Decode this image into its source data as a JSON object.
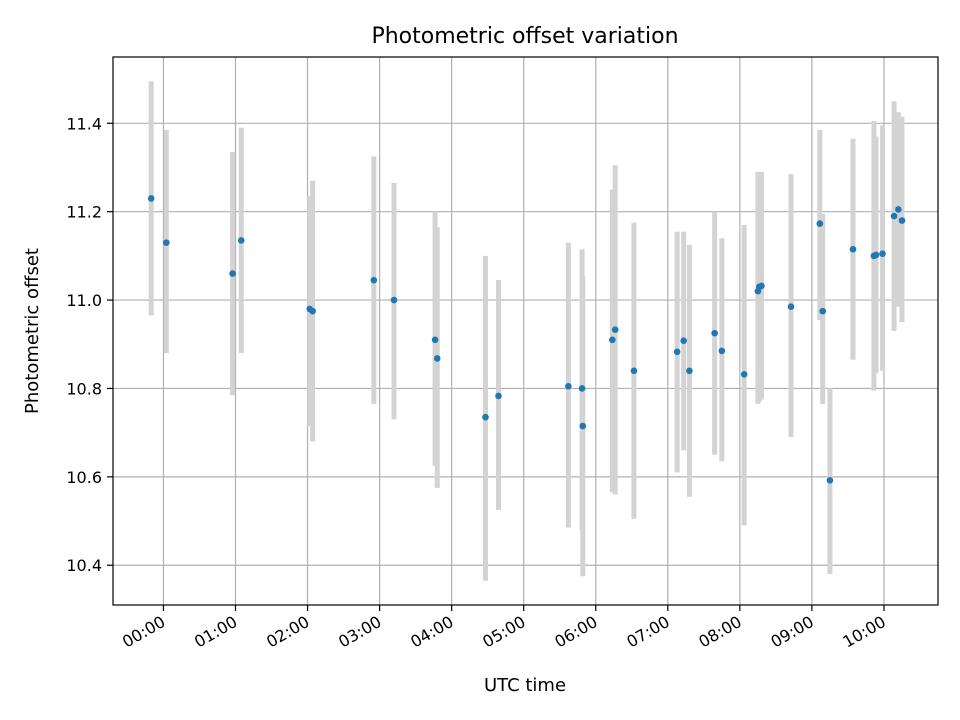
{
  "chart_data": {
    "type": "scatter",
    "title": "Photometric offset variation",
    "xlabel": "UTC time",
    "ylabel": "Photometric offset",
    "x_unit": "hours UTC",
    "xlim": [
      -0.7,
      10.75
    ],
    "ylim": [
      10.31,
      11.55
    ],
    "xticks": [
      {
        "value": 0,
        "label": "00:00"
      },
      {
        "value": 1,
        "label": "01:00"
      },
      {
        "value": 2,
        "label": "02:00"
      },
      {
        "value": 3,
        "label": "03:00"
      },
      {
        "value": 4,
        "label": "04:00"
      },
      {
        "value": 5,
        "label": "05:00"
      },
      {
        "value": 6,
        "label": "06:00"
      },
      {
        "value": 7,
        "label": "07:00"
      },
      {
        "value": 8,
        "label": "08:00"
      },
      {
        "value": 9,
        "label": "09:00"
      },
      {
        "value": 10,
        "label": "10:00"
      }
    ],
    "yticks": [
      {
        "value": 10.4,
        "label": "10.4"
      },
      {
        "value": 10.6,
        "label": "10.6"
      },
      {
        "value": 10.8,
        "label": "10.8"
      },
      {
        "value": 11.0,
        "label": "11.0"
      },
      {
        "value": 11.2,
        "label": "11.2"
      },
      {
        "value": 11.4,
        "label": "11.4"
      }
    ],
    "grid": true,
    "point_color": "#1f77b4",
    "errorbar_color": "#d3d3d3",
    "points": [
      {
        "x": -0.17,
        "y": 11.23,
        "lo": 10.965,
        "hi": 11.495
      },
      {
        "x": 0.04,
        "y": 11.13,
        "lo": 10.88,
        "hi": 11.385
      },
      {
        "x": 0.96,
        "y": 11.06,
        "lo": 10.785,
        "hi": 11.335
      },
      {
        "x": 1.08,
        "y": 11.135,
        "lo": 10.88,
        "hi": 11.39
      },
      {
        "x": 2.03,
        "y": 10.98,
        "lo": 10.715,
        "hi": 11.235
      },
      {
        "x": 2.07,
        "y": 10.975,
        "lo": 10.68,
        "hi": 11.27
      },
      {
        "x": 2.92,
        "y": 11.045,
        "lo": 10.765,
        "hi": 11.325
      },
      {
        "x": 3.2,
        "y": 11.0,
        "lo": 10.73,
        "hi": 11.265
      },
      {
        "x": 3.77,
        "y": 10.91,
        "lo": 10.625,
        "hi": 11.2
      },
      {
        "x": 3.8,
        "y": 10.868,
        "lo": 10.575,
        "hi": 11.165
      },
      {
        "x": 4.47,
        "y": 10.735,
        "lo": 10.365,
        "hi": 11.1
      },
      {
        "x": 4.65,
        "y": 10.783,
        "lo": 10.525,
        "hi": 11.045
      },
      {
        "x": 5.62,
        "y": 10.805,
        "lo": 10.485,
        "hi": 11.13
      },
      {
        "x": 5.81,
        "y": 10.8,
        "lo": 10.48,
        "hi": 11.115
      },
      {
        "x": 5.82,
        "y": 10.715,
        "lo": 10.375,
        "hi": 11.055
      },
      {
        "x": 6.23,
        "y": 10.91,
        "lo": 10.565,
        "hi": 11.25
      },
      {
        "x": 6.27,
        "y": 10.933,
        "lo": 10.56,
        "hi": 11.305
      },
      {
        "x": 6.53,
        "y": 10.84,
        "lo": 10.505,
        "hi": 11.175
      },
      {
        "x": 7.13,
        "y": 10.883,
        "lo": 10.61,
        "hi": 11.155
      },
      {
        "x": 7.22,
        "y": 10.908,
        "lo": 10.66,
        "hi": 11.155
      },
      {
        "x": 7.3,
        "y": 10.84,
        "lo": 10.555,
        "hi": 11.125
      },
      {
        "x": 7.65,
        "y": 10.925,
        "lo": 10.65,
        "hi": 11.2
      },
      {
        "x": 7.75,
        "y": 10.885,
        "lo": 10.635,
        "hi": 11.14
      },
      {
        "x": 8.06,
        "y": 10.832,
        "lo": 10.49,
        "hi": 11.17
      },
      {
        "x": 8.25,
        "y": 11.02,
        "lo": 10.765,
        "hi": 11.29
      },
      {
        "x": 8.27,
        "y": 11.03,
        "lo": 10.77,
        "hi": 11.29
      },
      {
        "x": 8.3,
        "y": 11.032,
        "lo": 10.775,
        "hi": 11.29
      },
      {
        "x": 8.71,
        "y": 10.985,
        "lo": 10.69,
        "hi": 11.285
      },
      {
        "x": 9.11,
        "y": 11.173,
        "lo": 10.955,
        "hi": 11.385
      },
      {
        "x": 9.15,
        "y": 10.975,
        "lo": 10.765,
        "hi": 11.195
      },
      {
        "x": 9.25,
        "y": 10.592,
        "lo": 10.38,
        "hi": 10.8
      },
      {
        "x": 9.57,
        "y": 11.115,
        "lo": 10.865,
        "hi": 11.365
      },
      {
        "x": 9.86,
        "y": 11.1,
        "lo": 10.795,
        "hi": 11.405
      },
      {
        "x": 9.89,
        "y": 11.102,
        "lo": 10.835,
        "hi": 11.37
      },
      {
        "x": 9.98,
        "y": 11.105,
        "lo": 10.84,
        "hi": 11.395
      },
      {
        "x": 10.14,
        "y": 11.19,
        "lo": 10.93,
        "hi": 11.45
      },
      {
        "x": 10.2,
        "y": 11.205,
        "lo": 10.985,
        "hi": 11.425
      },
      {
        "x": 10.25,
        "y": 11.18,
        "lo": 10.95,
        "hi": 11.415
      }
    ]
  }
}
